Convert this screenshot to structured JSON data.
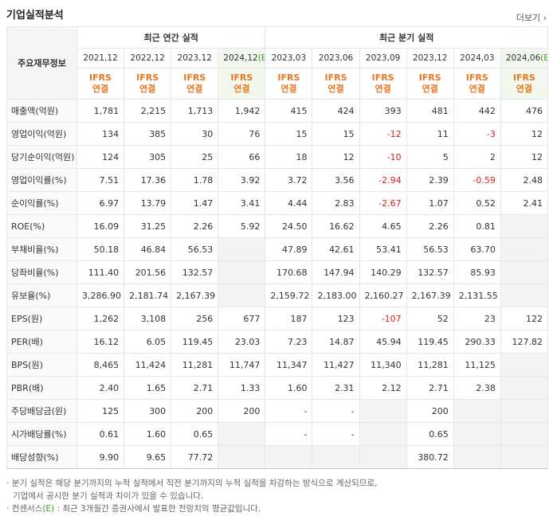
{
  "header": {
    "title": "기업실적분석",
    "more": "더보기"
  },
  "table": {
    "corner": "주요재무정보",
    "groups": [
      "최근 연간 실적",
      "최근 분기 실적"
    ],
    "columns": [
      {
        "date": "2021,12",
        "basis": "IFRS",
        "scope": "연결"
      },
      {
        "date": "2022,12",
        "basis": "IFRS",
        "scope": "연결"
      },
      {
        "date": "2023,12",
        "basis": "IFRS",
        "scope": "연결"
      },
      {
        "date": "2024,12",
        "mark": "(E)",
        "basis": "IFRS",
        "scope": "연결"
      },
      {
        "date": "2023,03",
        "basis": "IFRS",
        "scope": "연결"
      },
      {
        "date": "2023,06",
        "basis": "IFRS",
        "scope": "연결"
      },
      {
        "date": "2023,09",
        "basis": "IFRS",
        "scope": "연결"
      },
      {
        "date": "2023,12",
        "basis": "IFRS",
        "scope": "연결"
      },
      {
        "date": "2024,03",
        "basis": "IFRS",
        "scope": "연결"
      },
      {
        "date": "2024,06",
        "mark": "(E)",
        "basis": "IFRS",
        "scope": "연결"
      }
    ],
    "row_groups": [
      [
        {
          "label": "매출액(억원)",
          "values": [
            "1,781",
            "2,215",
            "1,713",
            "1,942",
            "415",
            "424",
            "393",
            "481",
            "442",
            "476"
          ]
        },
        {
          "label": "영업이익(억원)",
          "values": [
            "134",
            "385",
            "30",
            "76",
            "15",
            "15",
            "-12",
            "11",
            "-3",
            "12"
          ]
        },
        {
          "label": "당기순이익(억원)",
          "values": [
            "124",
            "305",
            "25",
            "66",
            "18",
            "12",
            "-10",
            "5",
            "2",
            "12"
          ]
        }
      ],
      [
        {
          "label": "영업이익률(%)",
          "values": [
            "7.51",
            "17.36",
            "1.78",
            "3.92",
            "3.72",
            "3.56",
            "-2.94",
            "2.39",
            "-0.59",
            "2.48"
          ]
        },
        {
          "label": "순이익률(%)",
          "values": [
            "6.97",
            "13.79",
            "1.47",
            "3.41",
            "4.44",
            "2.83",
            "-2.67",
            "1.07",
            "0.52",
            "2.41"
          ]
        },
        {
          "label": "ROE(%)",
          "values": [
            "16.09",
            "31.25",
            "2.26",
            "5.92",
            "24.50",
            "16.62",
            "4.65",
            "2.26",
            "0.81",
            null
          ]
        }
      ],
      [
        {
          "label": "부채비율(%)",
          "values": [
            "50.18",
            "46.84",
            "56.53",
            null,
            "47.89",
            "42.61",
            "53.41",
            "56.53",
            "63.70",
            null
          ]
        },
        {
          "label": "당좌비율(%)",
          "values": [
            "111.40",
            "201.56",
            "132.57",
            null,
            "170.68",
            "147.94",
            "140.29",
            "132.57",
            "85.93",
            null
          ]
        },
        {
          "label": "유보율(%)",
          "values": [
            "3,286.90",
            "2,181.74",
            "2,167.39",
            null,
            "2,159.72",
            "2,183.00",
            "2,160.27",
            "2,167.39",
            "2,131.55",
            null
          ]
        }
      ],
      [
        {
          "label": "EPS(원)",
          "values": [
            "1,262",
            "3,108",
            "256",
            "677",
            "187",
            "123",
            "-107",
            "52",
            "23",
            "122"
          ]
        },
        {
          "label": "PER(배)",
          "values": [
            "16.12",
            "6.05",
            "119.45",
            "23.03",
            "7.23",
            "14.87",
            "45.94",
            "119.45",
            "290.33",
            "127.82"
          ]
        },
        {
          "label": "BPS(원)",
          "values": [
            "8,465",
            "11,424",
            "11,281",
            "11,747",
            "11,347",
            "11,427",
            "11,340",
            "11,281",
            "11,125",
            null
          ]
        },
        {
          "label": "PBR(배)",
          "values": [
            "2.40",
            "1.65",
            "2.71",
            "1.33",
            "1.60",
            "2.31",
            "2.12",
            "2.71",
            "2.38",
            null
          ]
        }
      ],
      [
        {
          "label": "주당배당금(원)",
          "values": [
            "125",
            "300",
            "200",
            "200",
            "-",
            "-",
            null,
            "200",
            null,
            null
          ]
        },
        {
          "label": "시가배당률(%)",
          "values": [
            "0.61",
            "1.60",
            "0.65",
            null,
            "-",
            "-",
            null,
            "0.65",
            null,
            null
          ]
        },
        {
          "label": "배당성향(%)",
          "values": [
            "9.90",
            "9.65",
            "77.72",
            null,
            null,
            null,
            null,
            "380.72",
            null,
            null
          ]
        }
      ]
    ]
  },
  "notes": {
    "lines": [
      "분기 실적은 해당 분기까지의 누적 실적에서 직전 분기까지의 누적 실적을 차감하는 방식으로 계산되므로,",
      "기업에서 공시한 분기 실적과 차이가 있을 수 있습니다."
    ],
    "consensus": {
      "before": "컨센서스",
      "mark": "(E)",
      "after": " : 최근 3개월간 증권사에서 발표한 전망치의 평균값입니다."
    }
  }
}
